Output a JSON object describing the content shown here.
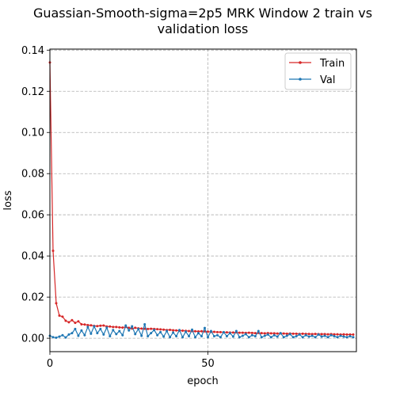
{
  "chart_data": {
    "type": "line",
    "title_line1": "Guassian-Smooth-sigma=2p5 MRK Window 2 train vs",
    "title_line2": "validation loss",
    "xlabel": "epoch",
    "ylabel": "loss",
    "xlim": [
      0,
      97
    ],
    "ylim": [
      -0.0065,
      0.1405
    ],
    "x_ticks": [
      0,
      50
    ],
    "x_tick_labels": [
      "0",
      "50"
    ],
    "y_ticks": [
      0.0,
      0.02,
      0.04,
      0.06,
      0.08,
      0.1,
      0.12,
      0.14
    ],
    "y_tick_labels": [
      "0.00",
      "0.02",
      "0.04",
      "0.06",
      "0.08",
      "0.10",
      "0.12",
      "0.14"
    ],
    "grid": true,
    "legend_position": "top-right",
    "series": [
      {
        "name": "Train",
        "color": "#d62728",
        "x": [
          0,
          1,
          2,
          3,
          4,
          5,
          6,
          7,
          8,
          9,
          10,
          11,
          12,
          13,
          14,
          15,
          16,
          17,
          18,
          19,
          20,
          21,
          22,
          23,
          24,
          25,
          26,
          27,
          28,
          29,
          30,
          31,
          32,
          33,
          34,
          35,
          36,
          37,
          38,
          39,
          40,
          41,
          42,
          43,
          44,
          45,
          46,
          47,
          48,
          49,
          50,
          51,
          52,
          53,
          54,
          55,
          56,
          57,
          58,
          59,
          60,
          61,
          62,
          63,
          64,
          65,
          66,
          67,
          68,
          69,
          70,
          71,
          72,
          73,
          74,
          75,
          76,
          77,
          78,
          79,
          80,
          81,
          82,
          83,
          84,
          85,
          86,
          87,
          88,
          89,
          90,
          91,
          92,
          93,
          94,
          95,
          96
        ],
        "values": [
          0.134,
          0.0425,
          0.017,
          0.011,
          0.0105,
          0.0085,
          0.0078,
          0.0088,
          0.0075,
          0.0082,
          0.0068,
          0.0067,
          0.0064,
          0.0063,
          0.006,
          0.0059,
          0.0061,
          0.0062,
          0.0057,
          0.0057,
          0.0055,
          0.0055,
          0.0053,
          0.0052,
          0.0055,
          0.0051,
          0.0047,
          0.0051,
          0.0048,
          0.0047,
          0.0046,
          0.0045,
          0.0046,
          0.0045,
          0.0044,
          0.0043,
          0.0042,
          0.004,
          0.0041,
          0.0039,
          0.0038,
          0.0037,
          0.0037,
          0.0036,
          0.0035,
          0.0035,
          0.0034,
          0.0033,
          0.0034,
          0.0033,
          0.0032,
          0.0031,
          0.0031,
          0.003,
          0.003,
          0.0029,
          0.0029,
          0.0028,
          0.0028,
          0.0029,
          0.0027,
          0.0027,
          0.0026,
          0.0027,
          0.0026,
          0.0025,
          0.0026,
          0.0025,
          0.0024,
          0.0025,
          0.0024,
          0.0024,
          0.0023,
          0.0024,
          0.0023,
          0.0022,
          0.0023,
          0.0022,
          0.0022,
          0.0021,
          0.0022,
          0.0021,
          0.0021,
          0.002,
          0.0021,
          0.002,
          0.002,
          0.002,
          0.0019,
          0.002,
          0.0019,
          0.0019,
          0.0018,
          0.0019,
          0.0018,
          0.0018,
          0.0018
        ]
      },
      {
        "name": "Val",
        "color": "#1f77b4",
        "x": [
          0,
          1,
          2,
          3,
          4,
          5,
          6,
          7,
          8,
          9,
          10,
          11,
          12,
          13,
          14,
          15,
          16,
          17,
          18,
          19,
          20,
          21,
          22,
          23,
          24,
          25,
          26,
          27,
          28,
          29,
          30,
          31,
          32,
          33,
          34,
          35,
          36,
          37,
          38,
          39,
          40,
          41,
          42,
          43,
          44,
          45,
          46,
          47,
          48,
          49,
          50,
          51,
          52,
          53,
          54,
          55,
          56,
          57,
          58,
          59,
          60,
          61,
          62,
          63,
          64,
          65,
          66,
          67,
          68,
          69,
          70,
          71,
          72,
          73,
          74,
          75,
          76,
          77,
          78,
          79,
          80,
          81,
          82,
          83,
          84,
          85,
          86,
          87,
          88,
          89,
          90,
          91,
          92,
          93,
          94,
          95,
          96
        ],
        "values": [
          0.0012,
          0.0005,
          0.0003,
          0.0008,
          0.0015,
          0.0004,
          0.0018,
          0.0025,
          0.0045,
          0.0012,
          0.0038,
          0.0015,
          0.0055,
          0.0022,
          0.0058,
          0.0025,
          0.0045,
          0.0018,
          0.0052,
          0.001,
          0.004,
          0.002,
          0.0035,
          0.0015,
          0.0062,
          0.0038,
          0.0058,
          0.002,
          0.0045,
          0.0012,
          0.0068,
          0.001,
          0.0025,
          0.004,
          0.0015,
          0.003,
          0.0008,
          0.0035,
          0.0005,
          0.0028,
          0.001,
          0.004,
          0.0005,
          0.0032,
          0.001,
          0.0042,
          0.0005,
          0.0025,
          0.001,
          0.005,
          0.0005,
          0.0035,
          0.001,
          0.0015,
          0.0005,
          0.003,
          0.001,
          0.0025,
          0.0008,
          0.0035,
          0.0005,
          0.0012,
          0.002,
          0.0005,
          0.0015,
          0.001,
          0.0035,
          0.0005,
          0.0012,
          0.0018,
          0.0005,
          0.0015,
          0.0008,
          0.0025,
          0.0005,
          0.0012,
          0.002,
          0.0005,
          0.001,
          0.0018,
          0.0005,
          0.0015,
          0.0008,
          0.0012,
          0.0005,
          0.0018,
          0.0008,
          0.0012,
          0.0005,
          0.0015,
          0.001,
          0.0005,
          0.0012,
          0.0008,
          0.0005,
          0.001,
          0.0005
        ]
      }
    ]
  }
}
